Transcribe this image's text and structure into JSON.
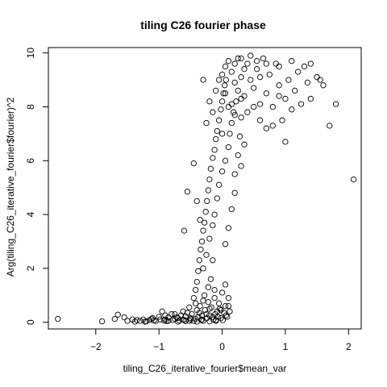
{
  "chart_data": {
    "type": "scatter",
    "title": "tiling C26 fourier phase",
    "xlabel": "tiling_C26_iterative_fourier$mean_var",
    "ylabel": "Arg(tiling_C26_iterative_fourier$fourier)^2",
    "xlim": [
      -2.75,
      2.2
    ],
    "ylim": [
      -0.25,
      10.2
    ],
    "xticks": [
      -2,
      -1,
      0,
      1,
      2
    ],
    "yticks": [
      0,
      2,
      4,
      6,
      8,
      10
    ],
    "grid": false,
    "marker": "open-circle",
    "series": [
      {
        "points": [
          [
            -2.6,
            0.12
          ],
          [
            -1.9,
            0.03
          ],
          [
            -1.7,
            0.12
          ],
          [
            -1.65,
            0.28
          ],
          [
            -1.55,
            0.18
          ],
          [
            -1.5,
            0.05
          ],
          [
            -1.42,
            0.1
          ],
          [
            -1.38,
            0.02
          ],
          [
            -1.3,
            0.05
          ],
          [
            -1.25,
            0.1
          ],
          [
            -1.2,
            0.03
          ],
          [
            -1.15,
            0.08
          ],
          [
            -1.1,
            0.15
          ],
          [
            -1.05,
            0.05
          ],
          [
            -1.0,
            0.2
          ],
          [
            -0.95,
            0.4
          ],
          [
            -0.9,
            0.1
          ],
          [
            -0.85,
            0.05
          ],
          [
            -0.8,
            0.3
          ],
          [
            -0.75,
            0.12
          ],
          [
            -0.7,
            0.02
          ],
          [
            -0.65,
            0.25
          ],
          [
            -0.6,
            0.08
          ],
          [
            -0.55,
            0.35
          ],
          [
            -0.5,
            0.15
          ],
          [
            -0.45,
            0.05
          ],
          [
            -0.4,
            0.45
          ],
          [
            -0.38,
            0.2
          ],
          [
            -0.35,
            0.6
          ],
          [
            -0.32,
            0.1
          ],
          [
            -0.3,
            0.8
          ],
          [
            -0.28,
            1.0
          ],
          [
            -0.25,
            0.3
          ],
          [
            -0.22,
            1.3
          ],
          [
            -0.2,
            0.5
          ],
          [
            -0.18,
            1.6
          ],
          [
            -0.15,
            0.2
          ],
          [
            -0.12,
            0.9
          ],
          [
            -0.1,
            0.05
          ],
          [
            -0.08,
            0.4
          ],
          [
            -0.05,
            0.7
          ],
          [
            -0.02,
            0.15
          ],
          [
            0.0,
            1.1
          ],
          [
            0.03,
            0.35
          ],
          [
            0.05,
            0.6
          ],
          [
            0.08,
            0.2
          ],
          [
            0.1,
            0.9
          ],
          [
            0.12,
            0.4
          ],
          [
            -0.45,
            0.9
          ],
          [
            -0.42,
            1.2
          ],
          [
            -0.4,
            1.5
          ],
          [
            -0.38,
            1.9
          ],
          [
            -0.36,
            2.3
          ],
          [
            -0.34,
            2.7
          ],
          [
            -0.32,
            3.0
          ],
          [
            -0.3,
            3.4
          ],
          [
            -0.28,
            3.7
          ],
          [
            -0.26,
            4.1
          ],
          [
            -0.24,
            4.5
          ],
          [
            -0.22,
            4.9
          ],
          [
            -0.2,
            5.3
          ],
          [
            -0.18,
            5.7
          ],
          [
            -0.15,
            6.1
          ],
          [
            -0.12,
            6.4
          ],
          [
            -0.1,
            6.8
          ],
          [
            -0.08,
            7.1
          ],
          [
            -0.05,
            7.5
          ],
          [
            -0.02,
            7.9
          ],
          [
            0.0,
            8.2
          ],
          [
            0.02,
            8.5
          ],
          [
            0.04,
            8.8
          ],
          [
            0.06,
            9.0
          ],
          [
            -0.3,
            2.0
          ],
          [
            -0.25,
            2.5
          ],
          [
            -0.2,
            3.1
          ],
          [
            -0.15,
            3.6
          ],
          [
            -0.12,
            4.0
          ],
          [
            -0.08,
            4.6
          ],
          [
            -0.05,
            5.1
          ],
          [
            0.0,
            5.6
          ],
          [
            0.05,
            6.0
          ],
          [
            0.1,
            6.5
          ],
          [
            0.12,
            7.0
          ],
          [
            0.15,
            7.4
          ],
          [
            0.18,
            7.8
          ],
          [
            0.22,
            8.2
          ],
          [
            0.25,
            8.6
          ],
          [
            -0.55,
            4.85
          ],
          [
            -0.45,
            5.9
          ],
          [
            -0.4,
            4.5
          ],
          [
            -0.6,
            3.4
          ],
          [
            -0.35,
            3.8
          ],
          [
            -0.15,
            2.3
          ],
          [
            0.05,
            2.9
          ],
          [
            0.1,
            3.5
          ],
          [
            0.15,
            4.2
          ],
          [
            0.2,
            5.5
          ],
          [
            0.25,
            6.2
          ],
          [
            0.28,
            6.9
          ],
          [
            0.3,
            7.6
          ],
          [
            0.2,
            4.8
          ],
          [
            0.3,
            5.8
          ],
          [
            0.35,
            6.6
          ],
          [
            0.0,
            9.2
          ],
          [
            0.05,
            9.5
          ],
          [
            0.1,
            9.7
          ],
          [
            0.15,
            9.3
          ],
          [
            0.2,
            8.9
          ],
          [
            0.25,
            9.8
          ],
          [
            0.3,
            9.1
          ],
          [
            0.35,
            8.4
          ],
          [
            0.4,
            9.6
          ],
          [
            0.45,
            9.0
          ],
          [
            0.5,
            8.7
          ],
          [
            0.55,
            9.4
          ],
          [
            0.6,
            8.1
          ],
          [
            0.65,
            9.8
          ],
          [
            0.7,
            8.5
          ],
          [
            0.75,
            9.2
          ],
          [
            0.8,
            8.0
          ],
          [
            0.85,
            9.6
          ],
          [
            0.9,
            8.8
          ],
          [
            0.95,
            7.5
          ],
          [
            1.0,
            8.3
          ],
          [
            1.05,
            9.0
          ],
          [
            1.1,
            7.9
          ],
          [
            1.15,
            8.6
          ],
          [
            1.2,
            9.3
          ],
          [
            1.25,
            8.1
          ],
          [
            1.3,
            9.5
          ],
          [
            1.35,
            8.9
          ],
          [
            1.4,
            8.3
          ],
          [
            1.5,
            9.1
          ],
          [
            1.55,
            9.0
          ],
          [
            1.6,
            8.8
          ],
          [
            0.1,
            8.0
          ],
          [
            0.2,
            7.7
          ],
          [
            0.3,
            8.3
          ],
          [
            0.4,
            7.8
          ],
          [
            0.5,
            8.0
          ],
          [
            0.6,
            7.5
          ],
          [
            0.7,
            7.2
          ],
          [
            0.8,
            7.3
          ],
          [
            0.9,
            8.4
          ],
          [
            1.0,
            6.7
          ],
          [
            0.2,
            9.6
          ],
          [
            0.3,
            9.8
          ],
          [
            0.45,
            9.9
          ],
          [
            0.55,
            9.7
          ],
          [
            0.7,
            9.6
          ],
          [
            0.9,
            9.5
          ],
          [
            1.1,
            9.7
          ],
          [
            1.4,
            9.6
          ],
          [
            1.7,
            7.3
          ],
          [
            1.8,
            8.1
          ],
          [
            2.08,
            5.3
          ],
          [
            0.0,
            7.0
          ],
          [
            0.05,
            8.5
          ],
          [
            0.15,
            8.1
          ],
          [
            -0.1,
            8.6
          ],
          [
            -0.05,
            9.0
          ],
          [
            -0.15,
            7.8
          ],
          [
            -0.2,
            8.2
          ],
          [
            -0.25,
            7.4
          ],
          [
            -0.3,
            9.0
          ],
          [
            0.35,
            9.4
          ],
          [
            0.6,
            9.1
          ],
          [
            -0.9,
            0.25
          ],
          [
            -0.85,
            0.18
          ],
          [
            -0.75,
            0.3
          ],
          [
            -0.7,
            0.15
          ],
          [
            -0.62,
            0.1
          ],
          [
            -0.58,
            0.22
          ],
          [
            -0.52,
            0.05
          ],
          [
            -0.48,
            0.3
          ],
          [
            -0.42,
            0.12
          ],
          [
            -0.36,
            0.35
          ],
          [
            -0.33,
            0.08
          ],
          [
            -0.27,
            0.45
          ],
          [
            -0.24,
            0.15
          ],
          [
            -0.2,
            0.25
          ],
          [
            -0.17,
            0.55
          ],
          [
            -0.14,
            0.1
          ],
          [
            -0.11,
            0.3
          ],
          [
            -0.07,
            0.2
          ],
          [
            -0.04,
            0.5
          ],
          [
            0.01,
            0.08
          ],
          [
            0.06,
            0.25
          ],
          [
            -1.22,
            0.02
          ],
          [
            -1.08,
            0.06
          ],
          [
            -0.98,
            0.1
          ],
          [
            -0.88,
            0.04
          ],
          [
            -0.78,
            0.08
          ],
          [
            -0.68,
            0.06
          ],
          [
            -0.58,
            0.04
          ],
          [
            -0.5,
            0.1
          ],
          [
            -0.4,
            0.02
          ],
          [
            -0.3,
            0.05
          ],
          [
            -0.2,
            0.03
          ],
          [
            -0.1,
            0.08
          ],
          [
            -1.35,
            0.08
          ],
          [
            -1.12,
            0.12
          ],
          [
            -0.92,
            0.06
          ],
          [
            -0.72,
            0.18
          ],
          [
            -0.62,
            0.4
          ],
          [
            -0.52,
            0.55
          ],
          [
            -0.42,
            0.7
          ],
          [
            -0.32,
            0.25
          ],
          [
            -0.22,
            0.75
          ],
          [
            -0.12,
            1.2
          ],
          [
            -0.02,
            0.45
          ],
          [
            0.05,
            1.4
          ],
          [
            0.1,
            0.6
          ]
        ]
      }
    ]
  }
}
